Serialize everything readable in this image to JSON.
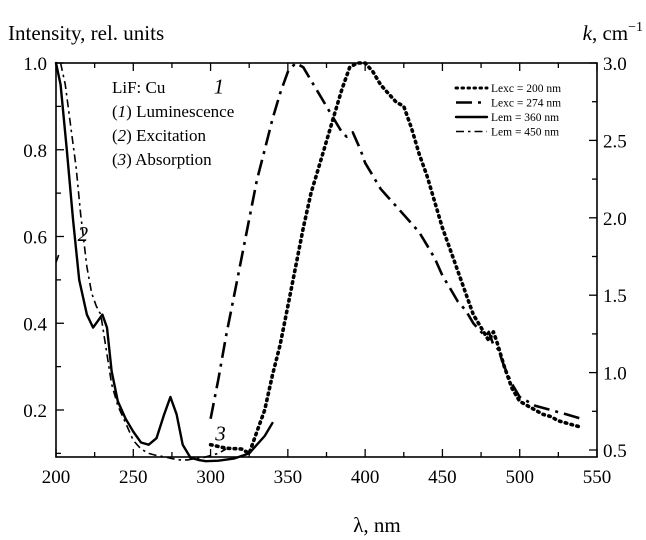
{
  "chart_data": {
    "type": "line",
    "ylabel": "Intensity, rel. units",
    "y2label_var": "k",
    "y2label_unit": ", cm",
    "y2label_exp": "−1",
    "xlabel": "λ, nm",
    "xlim": [
      200,
      550
    ],
    "ylim": [
      0.07,
      1.0
    ],
    "y2lim": [
      0.45,
      3.0
    ],
    "x_ticks": [
      200,
      250,
      300,
      350,
      400,
      450,
      500,
      550
    ],
    "y_ticks": [
      0.2,
      0.4,
      0.6,
      0.8,
      1.0
    ],
    "y_tick_labels": [
      "0.2",
      "0.4",
      "0.6",
      "0.8",
      "1.0"
    ],
    "y2_ticks": [
      0.5,
      1.0,
      1.5,
      2.0,
      2.5,
      3.0
    ],
    "y2_tick_labels": [
      "0.5",
      "1.0",
      "1.5",
      "2.0",
      "2.5",
      "3.0"
    ],
    "annotation": {
      "title": "LiF: Cu",
      "items": [
        {
          "num": "1",
          "text": "Luminescence"
        },
        {
          "num": "2",
          "text": "Excitation"
        },
        {
          "num": "3",
          "text": "Absorption"
        }
      ]
    },
    "curve_labels": [
      {
        "text": "1",
        "x": 302,
        "y": 0.93
      },
      {
        "text": "2",
        "x": 214,
        "y": 0.59
      },
      {
        "text": "3",
        "x": 303,
        "y": 0.13
      }
    ],
    "series": [
      {
        "name": "Lexc = 200 nm",
        "style": "dotted",
        "points": [
          [
            300,
            0.12
          ],
          [
            310,
            0.112
          ],
          [
            320,
            0.11
          ],
          [
            325,
            0.1
          ],
          [
            330,
            0.15
          ],
          [
            335,
            0.2
          ],
          [
            340,
            0.28
          ],
          [
            345,
            0.35
          ],
          [
            350,
            0.44
          ],
          [
            355,
            0.53
          ],
          [
            360,
            0.62
          ],
          [
            365,
            0.7
          ],
          [
            370,
            0.76
          ],
          [
            375,
            0.82
          ],
          [
            380,
            0.88
          ],
          [
            385,
            0.94
          ],
          [
            390,
            0.99
          ],
          [
            395,
            1.0
          ],
          [
            400,
            1.0
          ],
          [
            405,
            0.98
          ],
          [
            410,
            0.95
          ],
          [
            415,
            0.93
          ],
          [
            420,
            0.91
          ],
          [
            425,
            0.9
          ],
          [
            430,
            0.85
          ],
          [
            435,
            0.79
          ],
          [
            440,
            0.74
          ],
          [
            445,
            0.68
          ],
          [
            450,
            0.62
          ],
          [
            455,
            0.57
          ],
          [
            460,
            0.52
          ],
          [
            465,
            0.47
          ],
          [
            470,
            0.42
          ],
          [
            475,
            0.39
          ],
          [
            480,
            0.36
          ],
          [
            483,
            0.38
          ],
          [
            485,
            0.36
          ],
          [
            490,
            0.3
          ],
          [
            495,
            0.25
          ],
          [
            500,
            0.22
          ],
          [
            505,
            0.21
          ],
          [
            510,
            0.2
          ],
          [
            515,
            0.19
          ],
          [
            520,
            0.185
          ],
          [
            525,
            0.175
          ],
          [
            530,
            0.17
          ],
          [
            535,
            0.165
          ],
          [
            540,
            0.16
          ]
        ]
      },
      {
        "name": "Lexc = 274 nm",
        "style": "dashdot-long",
        "points": [
          [
            300,
            0.18
          ],
          [
            305,
            0.27
          ],
          [
            310,
            0.37
          ],
          [
            315,
            0.46
          ],
          [
            320,
            0.55
          ],
          [
            325,
            0.64
          ],
          [
            330,
            0.73
          ],
          [
            335,
            0.8
          ],
          [
            340,
            0.87
          ],
          [
            345,
            0.93
          ],
          [
            350,
            0.98
          ],
          [
            355,
            1.0
          ],
          [
            360,
            0.99
          ],
          [
            365,
            0.96
          ],
          [
            370,
            0.93
          ],
          [
            375,
            0.9
          ],
          [
            380,
            0.87
          ],
          [
            385,
            0.84
          ],
          [
            388,
            0.83
          ],
          [
            392,
            0.84
          ],
          [
            397,
            0.8
          ],
          [
            400,
            0.77
          ],
          [
            405,
            0.74
          ],
          [
            410,
            0.71
          ],
          [
            415,
            0.69
          ],
          [
            420,
            0.67
          ],
          [
            425,
            0.65
          ],
          [
            430,
            0.63
          ],
          [
            435,
            0.61
          ],
          [
            440,
            0.58
          ],
          [
            445,
            0.55
          ],
          [
            450,
            0.51
          ],
          [
            455,
            0.48
          ],
          [
            460,
            0.45
          ],
          [
            465,
            0.43
          ],
          [
            470,
            0.4
          ],
          [
            475,
            0.38
          ],
          [
            478,
            0.37
          ],
          [
            480,
            0.38
          ],
          [
            483,
            0.35
          ],
          [
            486,
            0.34
          ],
          [
            490,
            0.3
          ],
          [
            495,
            0.26
          ],
          [
            500,
            0.23
          ],
          [
            510,
            0.21
          ],
          [
            520,
            0.2
          ],
          [
            530,
            0.19
          ],
          [
            540,
            0.18
          ]
        ]
      },
      {
        "name": "Lem = 360 nm",
        "style": "solid",
        "points": [
          [
            200,
            1.0
          ],
          [
            203,
            0.95
          ],
          [
            207,
            0.8
          ],
          [
            211,
            0.64
          ],
          [
            215,
            0.5
          ],
          [
            220,
            0.42
          ],
          [
            224,
            0.39
          ],
          [
            228,
            0.41
          ],
          [
            230,
            0.42
          ],
          [
            233,
            0.39
          ],
          [
            236,
            0.29
          ],
          [
            240,
            0.22
          ],
          [
            245,
            0.18
          ],
          [
            250,
            0.15
          ],
          [
            255,
            0.125
          ],
          [
            260,
            0.12
          ],
          [
            265,
            0.135
          ],
          [
            270,
            0.19
          ],
          [
            274,
            0.23
          ],
          [
            278,
            0.19
          ],
          [
            282,
            0.12
          ],
          [
            287,
            0.09
          ],
          [
            292,
            0.085
          ],
          [
            297,
            0.082
          ],
          [
            305,
            0.083
          ],
          [
            315,
            0.088
          ],
          [
            325,
            0.1
          ],
          [
            330,
            0.12
          ],
          [
            335,
            0.14
          ],
          [
            340,
            0.17
          ]
        ]
      },
      {
        "name": "Lem = 450 nm",
        "style": "dashdot",
        "points": [
          [
            203,
            1.0
          ],
          [
            206,
            0.95
          ],
          [
            210,
            0.84
          ],
          [
            213,
            0.76
          ],
          [
            216,
            0.65
          ],
          [
            220,
            0.53
          ],
          [
            223,
            0.47
          ],
          [
            226,
            0.44
          ],
          [
            229,
            0.42
          ],
          [
            232,
            0.35
          ],
          [
            236,
            0.26
          ],
          [
            240,
            0.21
          ],
          [
            245,
            0.17
          ],
          [
            250,
            0.13
          ],
          [
            255,
            0.11
          ],
          [
            260,
            0.1
          ],
          [
            265,
            0.095
          ],
          [
            270,
            0.092
          ],
          [
            275,
            0.088
          ],
          [
            280,
            0.085
          ],
          [
            285,
            0.085
          ],
          [
            290,
            0.088
          ],
          [
            295,
            0.09
          ],
          [
            300,
            0.095
          ],
          [
            305,
            0.1
          ],
          [
            310,
            0.11
          ]
        ]
      },
      {
        "name": "",
        "style": "dashdot",
        "points": [
          [
            200,
            0.54
          ],
          [
            202,
            0.56
          ]
        ]
      }
    ]
  }
}
